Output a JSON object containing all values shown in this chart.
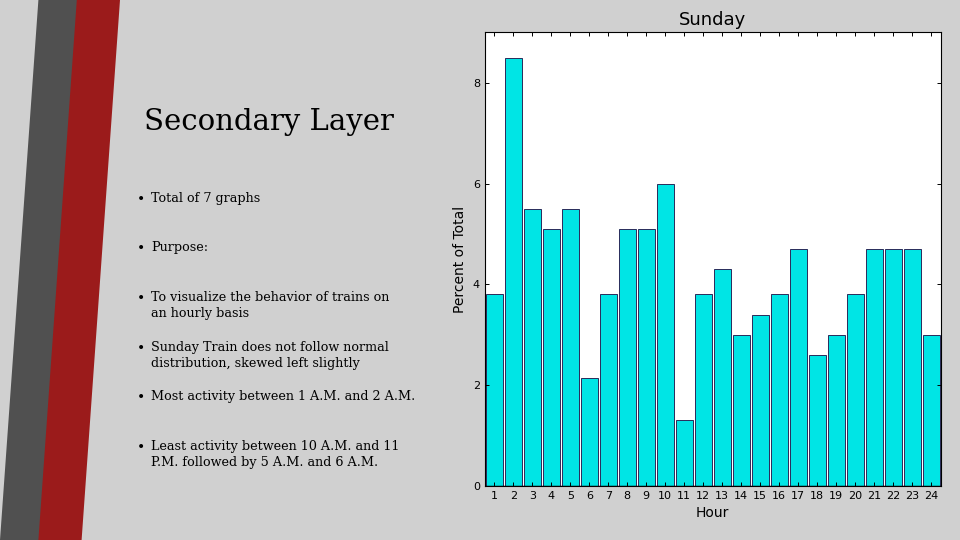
{
  "title": "Sunday",
  "xlabel": "Hour",
  "ylabel": "Percent of Total",
  "bar_color": "#00E5E5",
  "bar_edge_color": "#2a2a5a",
  "hours": [
    1,
    2,
    3,
    4,
    5,
    6,
    7,
    8,
    9,
    10,
    11,
    12,
    13,
    14,
    15,
    16,
    17,
    18,
    19,
    20,
    21,
    22,
    23,
    24
  ],
  "values": [
    3.8,
    8.5,
    5.5,
    5.1,
    5.5,
    2.15,
    3.8,
    5.1,
    5.1,
    6.0,
    1.3,
    3.8,
    4.3,
    3.0,
    3.4,
    3.8,
    4.7,
    2.6,
    3.0,
    3.8,
    4.7,
    4.7,
    4.7,
    3.0
  ],
  "ylim": [
    0,
    9
  ],
  "yticks": [
    0,
    2,
    4,
    6,
    8
  ],
  "plot_bg": "#ffffff",
  "title_fontsize": 13,
  "axis_fontsize": 10,
  "tick_fontsize": 8,
  "heading": "Secondary Layer",
  "bullets": [
    "Total of 7 graphs",
    "Purpose:",
    "To visualize the behavior of trains on\nan hourly basis",
    "Sunday Train does not follow normal\ndistribution, skewed left slightly",
    "Most activity between 1 A.M. and 2 A.M.",
    "Least activity between 10 A.M. and 11\nP.M. followed by 5 A.M. and 6 A.M."
  ],
  "left_bg": "#d0d0d0",
  "stripe_red": "#9b1b1b",
  "stripe_dark": "#505050"
}
